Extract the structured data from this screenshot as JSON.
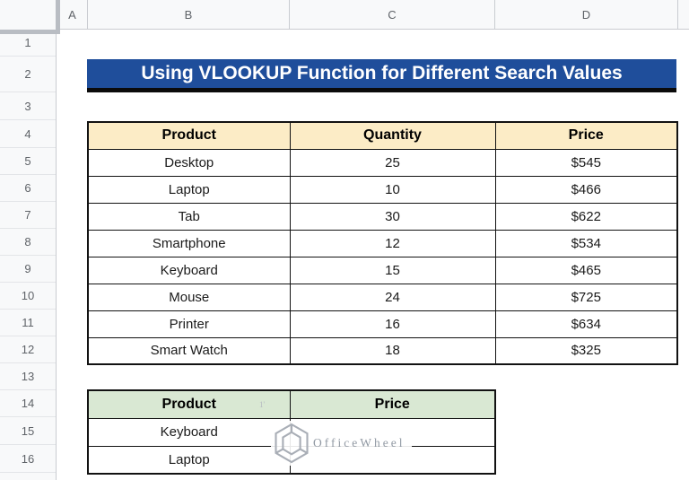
{
  "colors": {
    "banner_bg": "#1F4E9B",
    "banner_text": "#FFFFFF",
    "main_header_bg": "#FCECC6",
    "lookup_header_bg": "#D9E8D3",
    "table_border": "#121212",
    "header_strip_bg": "#F8F9FA",
    "header_strip_text": "#5F6368",
    "watermark_gray": "#9199A3"
  },
  "column_headers": [
    "A",
    "B",
    "C",
    "D"
  ],
  "row_headers": [
    "1",
    "2",
    "3",
    "4",
    "5",
    "6",
    "7",
    "8",
    "9",
    "10",
    "11",
    "12",
    "13",
    "14",
    "15",
    "16"
  ],
  "title_banner": {
    "text": "Using VLOOKUP Function for Different Search Values"
  },
  "main_table": {
    "columns": [
      "Product",
      "Quantity",
      "Price"
    ],
    "rows": [
      [
        "Desktop",
        "25",
        "$545"
      ],
      [
        "Laptop",
        "10",
        "$466"
      ],
      [
        "Tab",
        "30",
        "$622"
      ],
      [
        "Smartphone",
        "12",
        "$534"
      ],
      [
        "Keyboard",
        "15",
        "$465"
      ],
      [
        "Mouse",
        "24",
        "$725"
      ],
      [
        "Printer",
        "16",
        "$634"
      ],
      [
        "Smart Watch",
        "18",
        "$325"
      ]
    ]
  },
  "lookup_table": {
    "columns": [
      "Product",
      "Price"
    ],
    "rows": [
      [
        "Keyboard",
        ""
      ],
      [
        "Laptop",
        ""
      ]
    ]
  },
  "watermark": {
    "text": "OfficeWheel",
    "mark": "1'"
  }
}
